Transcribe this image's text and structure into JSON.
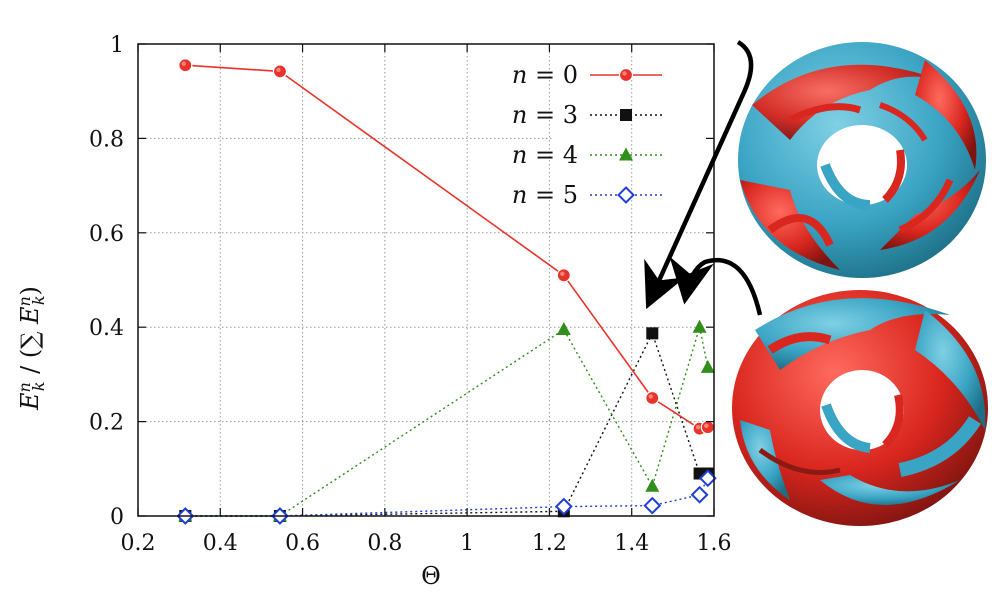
{
  "chart_data": {
    "type": "line",
    "xlabel": "Θ",
    "ylabel": "E_k^n / (∑ E_k^n)",
    "xlim": [
      0.2,
      1.6
    ],
    "ylim": [
      0,
      1
    ],
    "xticks": [
      "0.2",
      "0.4",
      "0.6",
      "0.8",
      "1",
      "1.2",
      "1.4",
      "1.6"
    ],
    "yticks": [
      "0",
      "0.2",
      "0.4",
      "0.6",
      "0.8",
      "1"
    ],
    "grid": true,
    "legend_position": "top-right",
    "series": [
      {
        "name": "n = 0",
        "color": "#e8332b",
        "marker": "circle",
        "dash": "solid",
        "points": [
          [
            0.315,
            0.955
          ],
          [
            0.545,
            0.942
          ],
          [
            1.235,
            0.51
          ],
          [
            1.45,
            0.25
          ],
          [
            1.565,
            0.185
          ],
          [
            1.585,
            0.188
          ]
        ]
      },
      {
        "name": "n = 3",
        "color": "#111111",
        "marker": "square",
        "dash": "dotted",
        "points": [
          [
            0.315,
            0.0
          ],
          [
            0.545,
            0.0
          ],
          [
            1.235,
            0.01
          ],
          [
            1.45,
            0.387
          ],
          [
            1.565,
            0.09
          ],
          [
            1.585,
            0.09
          ]
        ]
      },
      {
        "name": "n = 4",
        "color": "#2f8f1a",
        "marker": "triangle",
        "dash": "dotted",
        "points": [
          [
            0.315,
            0.0
          ],
          [
            0.545,
            0.0
          ],
          [
            1.235,
            0.395
          ],
          [
            1.45,
            0.063
          ],
          [
            1.565,
            0.4
          ],
          [
            1.585,
            0.315
          ]
        ]
      },
      {
        "name": "n = 5",
        "color": "#1f3fd8",
        "marker": "diamond",
        "dash": "dotted",
        "points": [
          [
            0.315,
            0.0
          ],
          [
            0.545,
            0.0
          ],
          [
            1.235,
            0.02
          ],
          [
            1.45,
            0.022
          ],
          [
            1.565,
            0.045
          ],
          [
            1.585,
            0.08
          ]
        ]
      }
    ],
    "annotations": [
      "arrow to (1.45, 0.387) from top torus image",
      "arrow to (1.565, 0.4) from bottom torus image"
    ]
  },
  "images": [
    {
      "description": "top torus vortex isosurface",
      "colors": [
        "#3aa4c4",
        "#d9261e"
      ]
    },
    {
      "description": "bottom torus vortex isosurface",
      "colors": [
        "#3aa4c4",
        "#d9261e"
      ]
    }
  ]
}
